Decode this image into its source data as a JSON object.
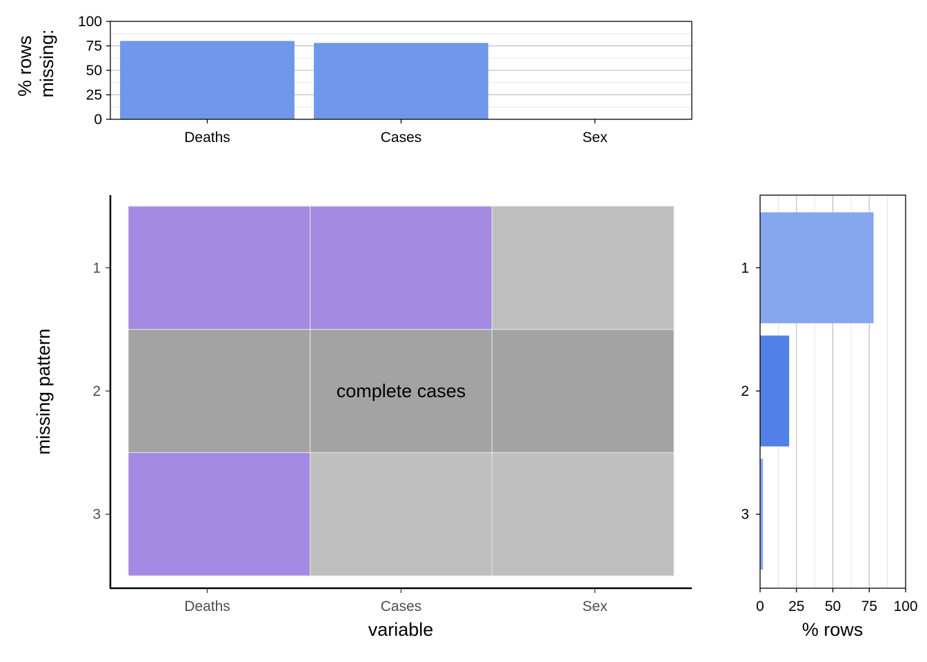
{
  "chart_data": [
    {
      "type": "bar",
      "panel": "top",
      "ylabel": "% rows\nmissing:",
      "ylim": [
        0,
        100
      ],
      "yticks": [
        0,
        25,
        50,
        75,
        100
      ],
      "categories": [
        "Deaths",
        "Cases",
        "Sex"
      ],
      "values": [
        80,
        78,
        0
      ],
      "color": "#6f98ea",
      "grid": true
    },
    {
      "type": "heatmap",
      "panel": "main",
      "xlabel": "variable",
      "ylabel": "missing pattern",
      "x_categories": [
        "Deaths",
        "Cases",
        "Sex"
      ],
      "y_categories": [
        "1",
        "2",
        "3"
      ],
      "cells": [
        [
          "missing",
          "missing",
          "present"
        ],
        [
          "complete",
          "complete",
          "complete"
        ],
        [
          "missing",
          "present",
          "present"
        ]
      ],
      "annotation": "complete cases",
      "annotation_row": 1,
      "colors": {
        "missing": "#a48ae2",
        "present": "#bfbfbf",
        "complete": "#a3a3a3"
      }
    },
    {
      "type": "bar",
      "panel": "right",
      "orientation": "horizontal",
      "xlabel": "% rows",
      "xlim": [
        0,
        100
      ],
      "xticks": [
        0,
        25,
        50,
        75,
        100
      ],
      "categories": [
        "1",
        "2",
        "3"
      ],
      "values": [
        78,
        20,
        2
      ],
      "colors": [
        "#86a6ef",
        "#5180e8",
        "#86a6ef"
      ],
      "grid": true
    }
  ]
}
